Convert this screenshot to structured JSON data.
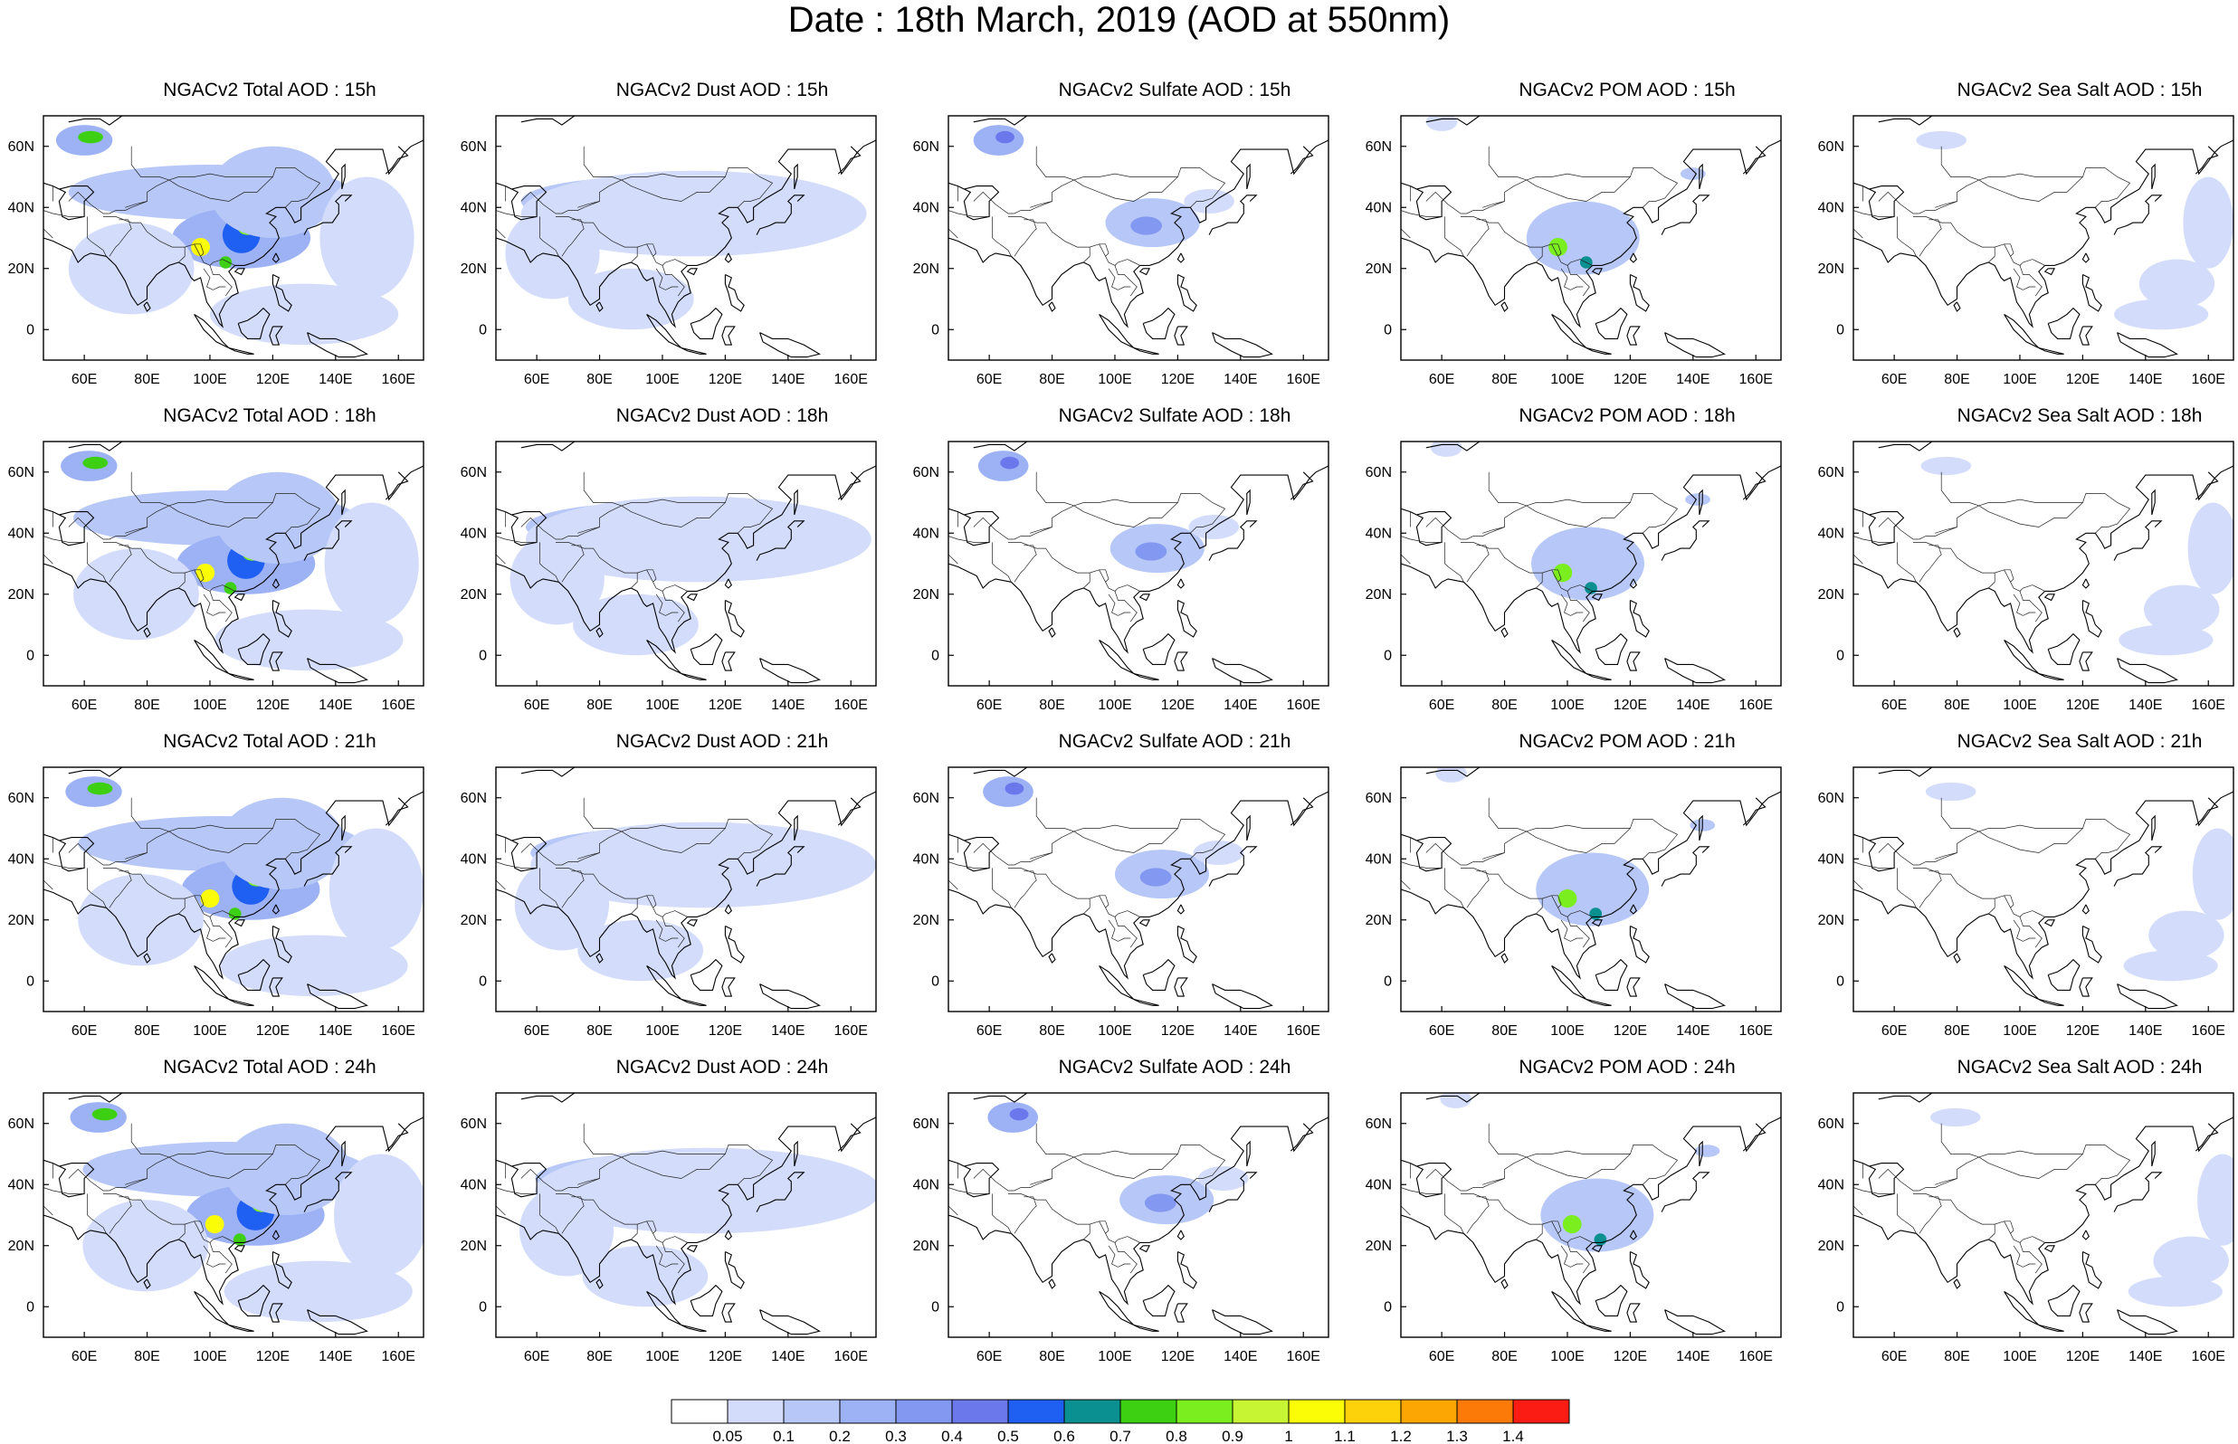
{
  "figure": {
    "title": "Date : 18th March, 2019 (AOD at 550nm)"
  },
  "axes": {
    "x_ticks": [
      "60E",
      "80E",
      "100E",
      "120E",
      "140E",
      "160E"
    ],
    "x_tick_values": [
      60,
      80,
      100,
      120,
      140,
      160
    ],
    "y_ticks": [
      "60N",
      "40N",
      "20N",
      "0"
    ],
    "y_tick_values": [
      60,
      40,
      20,
      0
    ],
    "lon_range": [
      47,
      168
    ],
    "lat_range": [
      -10,
      70
    ]
  },
  "species": [
    "Total",
    "Dust",
    "Sulfate",
    "POM",
    "Sea Salt"
  ],
  "hours": [
    "15h",
    "18h",
    "21h",
    "24h"
  ],
  "panels": [
    [
      "NGACv2 Total AOD : 15h",
      "NGACv2 Dust AOD : 15h",
      "NGACv2 Sulfate AOD : 15h",
      "NGACv2 POM AOD : 15h",
      "NGACv2 Sea Salt AOD : 15h"
    ],
    [
      "NGACv2 Total AOD : 18h",
      "NGACv2 Dust AOD : 18h",
      "NGACv2 Sulfate AOD : 18h",
      "NGACv2 POM AOD : 18h",
      "NGACv2 Sea Salt AOD : 18h"
    ],
    [
      "NGACv2 Total AOD : 21h",
      "NGACv2 Dust AOD : 21h",
      "NGACv2 Sulfate AOD : 21h",
      "NGACv2 POM AOD : 21h",
      "NGACv2 Sea Salt AOD : 21h"
    ],
    [
      "NGACv2 Total AOD : 24h",
      "NGACv2 Dust AOD : 24h",
      "NGACv2 Sulfate AOD : 24h",
      "NGACv2 POM AOD : 24h",
      "NGACv2 Sea Salt  AOD : 24h"
    ]
  ],
  "colorbar": {
    "labels": [
      "0.05",
      "0.1",
      "0.2",
      "0.3",
      "0.4",
      "0.5",
      "0.6",
      "0.7",
      "0.8",
      "0.9",
      "1",
      "1.1",
      "1.2",
      "1.3",
      "1.4"
    ],
    "colors": [
      "#ffffff",
      "#d3ddfb",
      "#b7c8f8",
      "#9db2f5",
      "#8398f0",
      "#6a78ec",
      "#1f5ff2",
      "#0a9090",
      "#3dcf12",
      "#7bee1f",
      "#c7f533",
      "#fbfd06",
      "#fdd20a",
      "#fca603",
      "#fc7a07",
      "#fb1d13"
    ]
  },
  "aod_patterns": {
    "Total": [
      {
        "lon": 60,
        "lat": 62,
        "rx": 9,
        "ry": 5,
        "level": 3
      },
      {
        "lon": 62,
        "lat": 63,
        "rx": 4,
        "ry": 2,
        "level": 8
      },
      {
        "lon": 100,
        "lat": 45,
        "rx": 45,
        "ry": 9,
        "level": 2
      },
      {
        "lon": 110,
        "lat": 30,
        "rx": 22,
        "ry": 10,
        "level": 3
      },
      {
        "lon": 97,
        "lat": 27,
        "rx": 3,
        "ry": 3,
        "level": 11
      },
      {
        "lon": 110,
        "lat": 31,
        "rx": 6,
        "ry": 6,
        "level": 6
      },
      {
        "lon": 112,
        "lat": 33,
        "rx": 3,
        "ry": 2,
        "level": 9
      },
      {
        "lon": 105,
        "lat": 22,
        "rx": 2,
        "ry": 2,
        "level": 8
      },
      {
        "lon": 120,
        "lat": 45,
        "rx": 20,
        "ry": 15,
        "level": 2
      },
      {
        "lon": 75,
        "lat": 20,
        "rx": 20,
        "ry": 15,
        "level": 1
      },
      {
        "lon": 150,
        "lat": 30,
        "rx": 15,
        "ry": 20,
        "level": 1
      },
      {
        "lon": 130,
        "lat": 5,
        "rx": 30,
        "ry": 10,
        "level": 1
      }
    ],
    "Dust": [
      {
        "lon": 95,
        "lat": 42,
        "rx": 40,
        "ry": 8,
        "level": 2
      },
      {
        "lon": 110,
        "lat": 38,
        "rx": 55,
        "ry": 14,
        "level": 1
      },
      {
        "lon": 65,
        "lat": 25,
        "rx": 15,
        "ry": 15,
        "level": 1
      },
      {
        "lon": 90,
        "lat": 10,
        "rx": 20,
        "ry": 10,
        "level": 1
      }
    ],
    "Sulfate": [
      {
        "lon": 63,
        "lat": 62,
        "rx": 8,
        "ry": 5,
        "level": 3
      },
      {
        "lon": 65,
        "lat": 63,
        "rx": 3,
        "ry": 2,
        "level": 5
      },
      {
        "lon": 112,
        "lat": 35,
        "rx": 15,
        "ry": 8,
        "level": 2
      },
      {
        "lon": 110,
        "lat": 34,
        "rx": 5,
        "ry": 3,
        "level": 4
      },
      {
        "lon": 130,
        "lat": 42,
        "rx": 8,
        "ry": 4,
        "level": 1
      }
    ],
    "POM": [
      {
        "lon": 105,
        "lat": 30,
        "rx": 18,
        "ry": 12,
        "level": 2
      },
      {
        "lon": 97,
        "lat": 27,
        "rx": 3,
        "ry": 3,
        "level": 9
      },
      {
        "lon": 106,
        "lat": 22,
        "rx": 2,
        "ry": 2,
        "level": 7
      },
      {
        "lon": 140,
        "lat": 51,
        "rx": 4,
        "ry": 2,
        "level": 2
      },
      {
        "lon": 60,
        "lat": 68,
        "rx": 5,
        "ry": 3,
        "level": 1
      }
    ],
    "Sea Salt": [
      {
        "lon": 160,
        "lat": 35,
        "rx": 8,
        "ry": 15,
        "level": 1
      },
      {
        "lon": 150,
        "lat": 15,
        "rx": 12,
        "ry": 8,
        "level": 1
      },
      {
        "lon": 75,
        "lat": 62,
        "rx": 8,
        "ry": 3,
        "level": 1
      },
      {
        "lon": 145,
        "lat": 5,
        "rx": 15,
        "ry": 5,
        "level": 1
      }
    ]
  }
}
